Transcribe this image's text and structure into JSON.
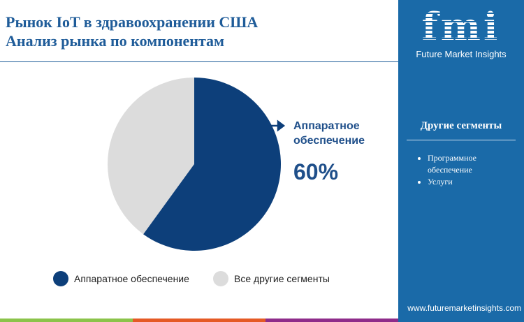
{
  "title": {
    "line1": "Рынок IoT в здравоохранении США",
    "line2": "Анализ рынка по компонентам"
  },
  "brand": {
    "logo": "fmi",
    "name": "Future Market Insights",
    "url": "www.futuremarketinsights.com"
  },
  "other_segments": {
    "title": "Другие сегменты",
    "items": [
      "Программное обеспечение",
      "Услуги"
    ]
  },
  "colors": {
    "hardware": "#0d3f7a",
    "others": "#dcdcdc",
    "panel": "#1a6aa8",
    "bars": [
      "#8bc34a",
      "#e55a25",
      "#8e2c8a"
    ]
  },
  "chart_data": {
    "type": "pie",
    "slices": [
      {
        "name": "Аппаратное обеспечение",
        "value": 60,
        "color": "#0d3f7a"
      },
      {
        "name": "Все другие сегменты",
        "value": 40,
        "color": "#dcdcdc"
      }
    ],
    "callout": {
      "label": "Аппаратное обеспечение",
      "value": "60%"
    },
    "legend_position": "bottom"
  }
}
